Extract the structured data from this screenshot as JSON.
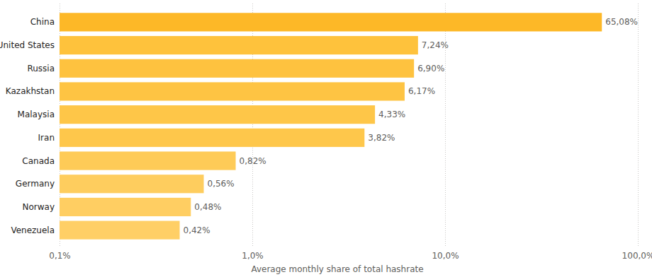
{
  "chart_data": {
    "type": "bar",
    "orientation": "horizontal",
    "xlabel": "Average monthly share of total hashrate",
    "categories": [
      "China",
      "United States",
      "Russia",
      "Kazakhstan",
      "Malaysia",
      "Iran",
      "Canada",
      "Germany",
      "Norway",
      "Venezuela"
    ],
    "values": [
      65.08,
      7.24,
      6.9,
      6.17,
      4.33,
      3.82,
      0.82,
      0.56,
      0.48,
      0.42
    ],
    "value_labels": [
      "65,08%",
      "7,24%",
      "6,90%",
      "6,17%",
      "4,33%",
      "3,82%",
      "0,82%",
      "0,56%",
      "0,48%",
      "0,42%"
    ],
    "colors": [
      "#fdb827",
      "#fec23c",
      "#fec23f",
      "#fec443",
      "#fec648",
      "#fec74b",
      "#fecb57",
      "#fecd5e",
      "#ffce62",
      "#ffcf66"
    ],
    "log": "x",
    "xlim": [
      0.1,
      100
    ],
    "xticks": [
      {
        "value": 0.1,
        "label": "0,1%"
      },
      {
        "value": 1,
        "label": "1,0%"
      },
      {
        "value": 10,
        "label": "10,0%"
      },
      {
        "value": 100,
        "label": "100,0%"
      }
    ],
    "grid": true,
    "data_labels": true
  }
}
